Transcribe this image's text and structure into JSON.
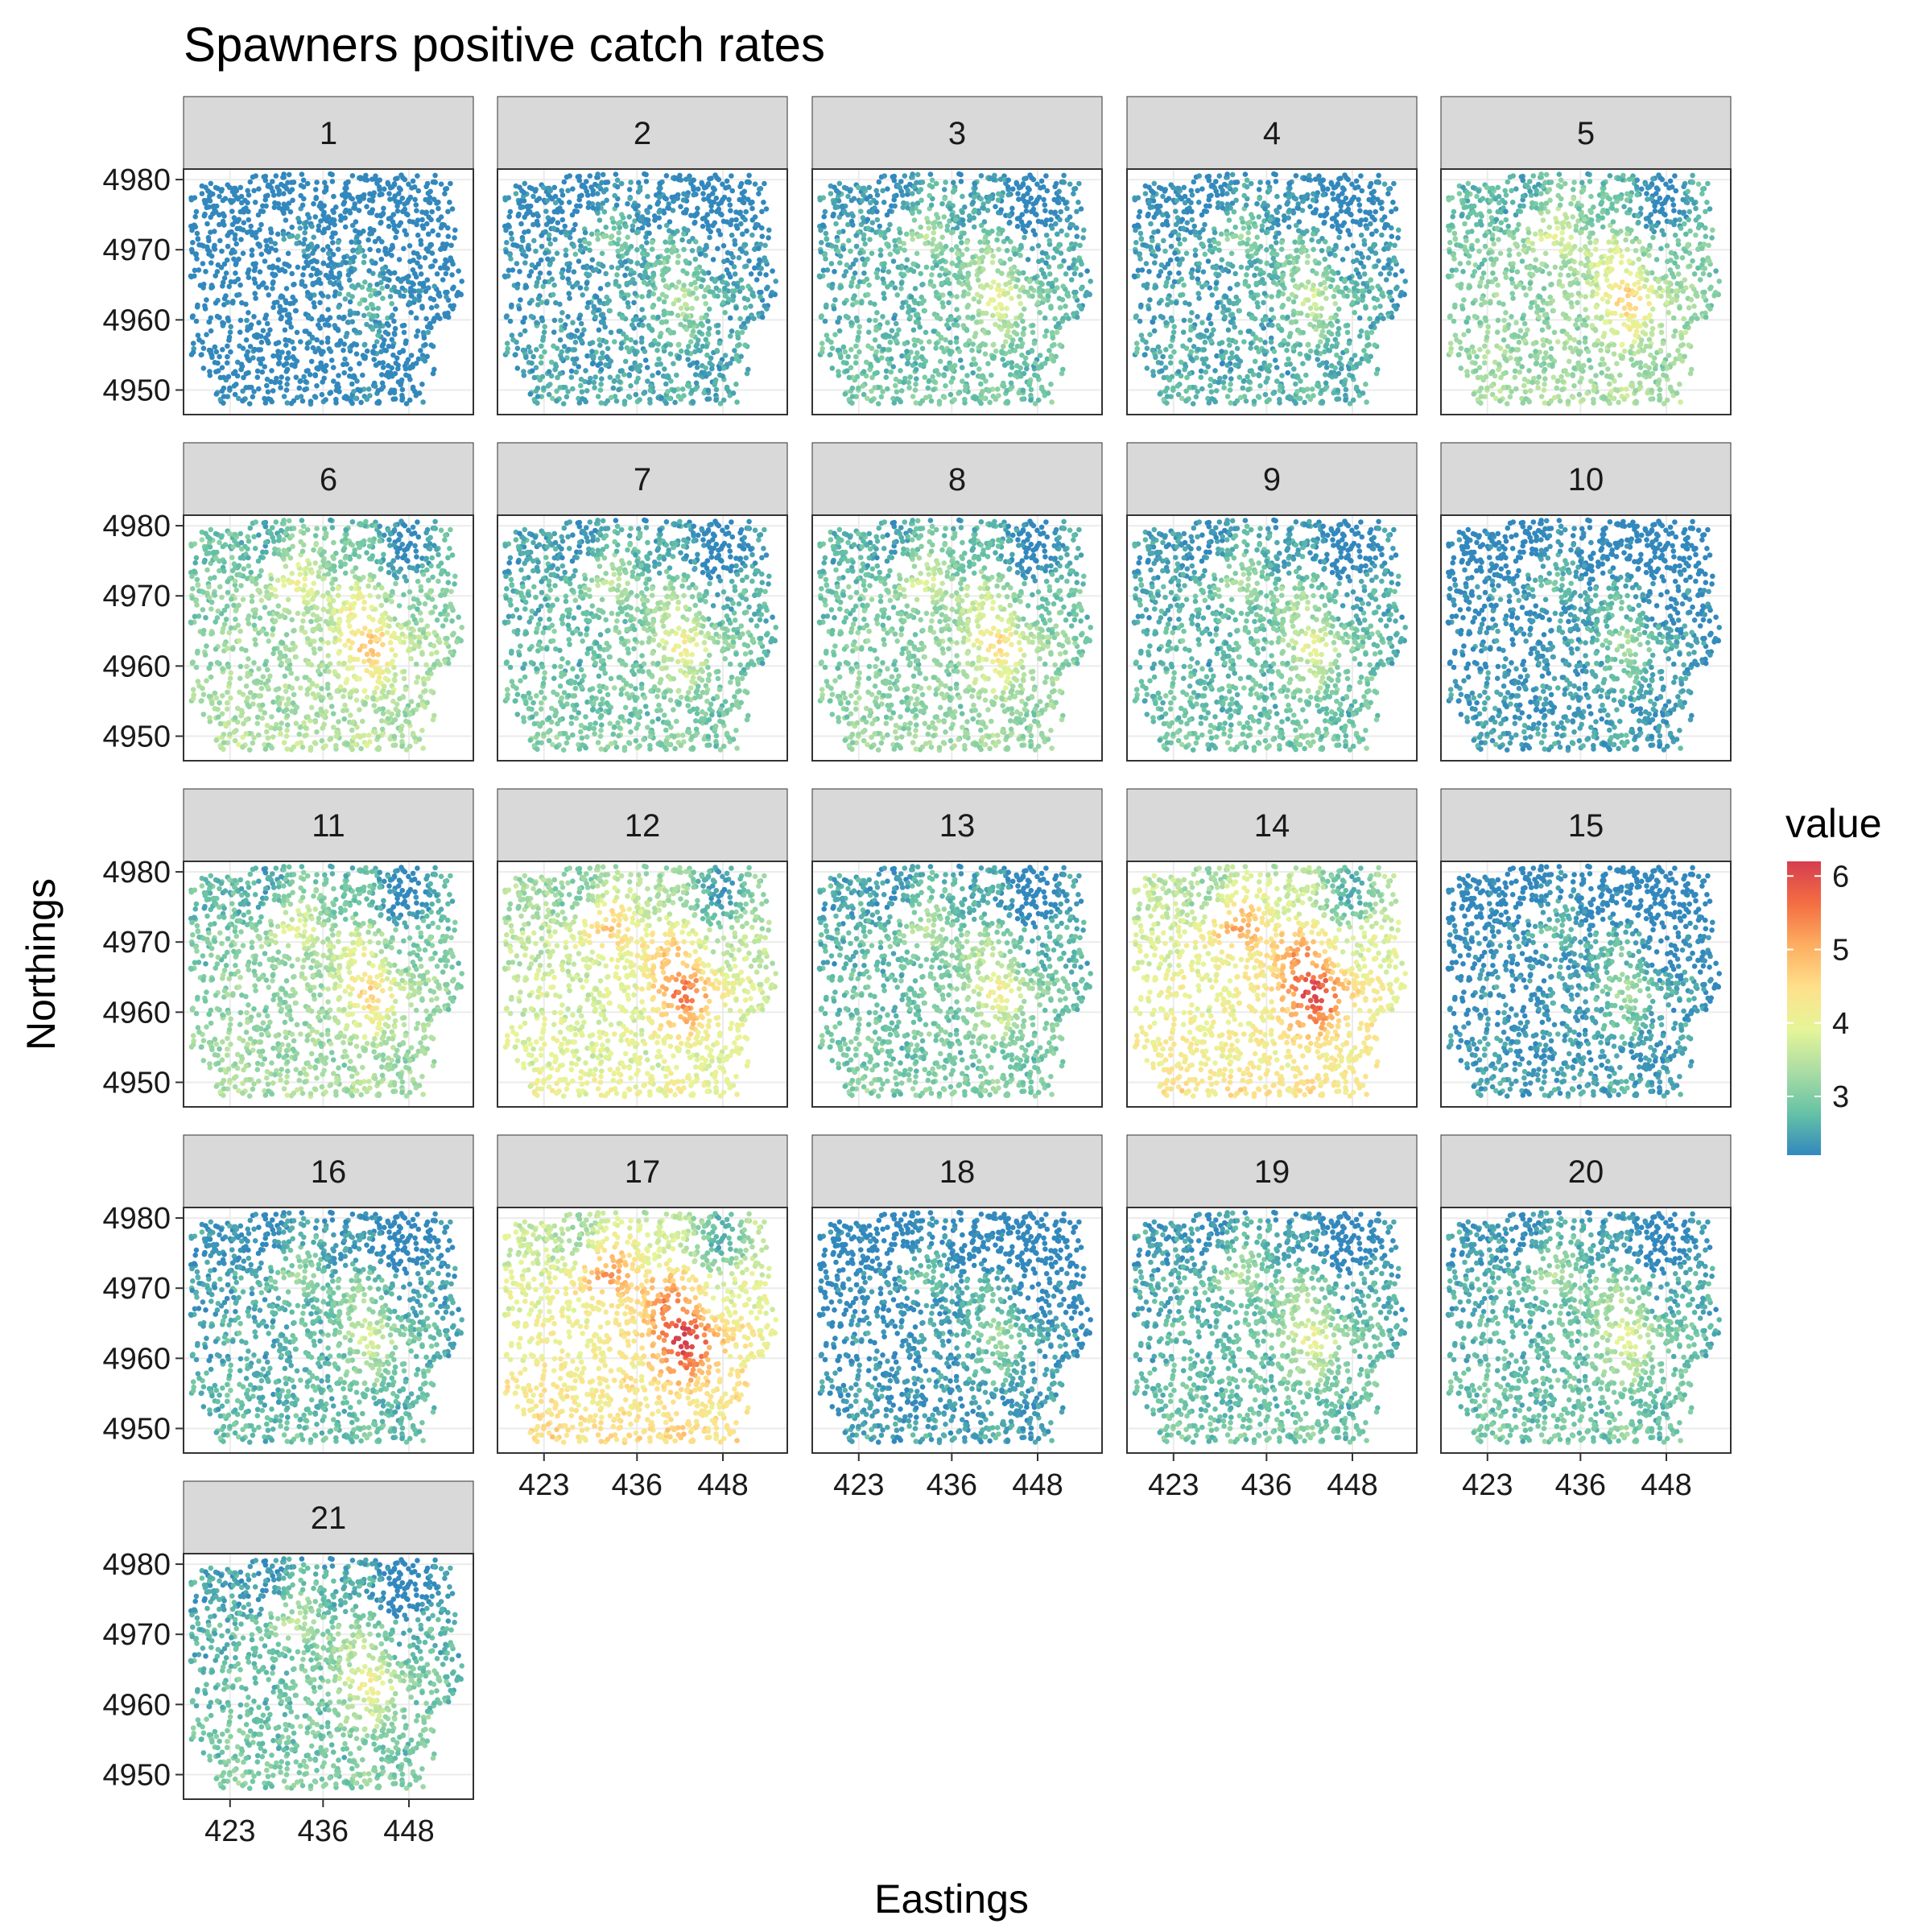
{
  "chart_data": {
    "type": "scatter",
    "title": "Spawners positive catch rates",
    "xlabel": "Eastings",
    "ylabel": "Northings",
    "facet_labels": [
      "1",
      "2",
      "3",
      "4",
      "5",
      "6",
      "7",
      "8",
      "9",
      "10",
      "11",
      "12",
      "13",
      "14",
      "15",
      "16",
      "17",
      "18",
      "19",
      "20",
      "21"
    ],
    "x_ticks": [
      423,
      436,
      448
    ],
    "y_ticks": [
      4950,
      4960,
      4970,
      4980
    ],
    "xlim": [
      416.5,
      457
    ],
    "ylim": [
      4946.5,
      4981.5
    ],
    "legend": {
      "title": "value",
      "ticks": [
        3,
        4,
        5,
        6
      ],
      "range": [
        2.2,
        6.2
      ],
      "colors": [
        "#3288bd",
        "#66c2a5",
        "#abdda4",
        "#e6f598",
        "#fee08b",
        "#fdae61",
        "#f46d43",
        "#d53e4f"
      ],
      "placement": "right"
    },
    "panel_mean_value": [
      2.3,
      2.7,
      3.0,
      2.8,
      3.4,
      3.5,
      3.1,
      3.3,
      3.0,
      2.6,
      3.4,
      4.0,
      3.1,
      4.3,
      2.6,
      2.9,
      4.4,
      2.6,
      3.0,
      3.0,
      3.1
    ],
    "hotspots": [
      {
        "x": 431,
        "y": 4973,
        "strength": 1.0
      },
      {
        "x": 440,
        "y": 4968.5,
        "strength": 0.8
      },
      {
        "x": 443,
        "y": 4962,
        "strength": 1.3
      },
      {
        "x": 448,
        "y": 4977,
        "strength": -0.8
      },
      {
        "x": 428,
        "y": 4976,
        "strength": -0.6
      }
    ],
    "points_per_panel": 1400
  }
}
